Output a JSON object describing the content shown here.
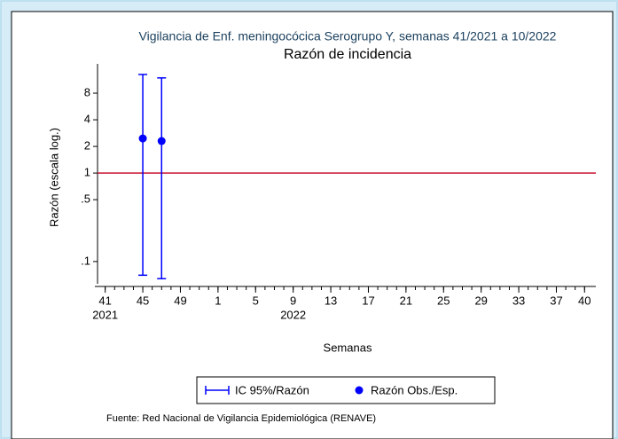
{
  "chart_data": {
    "type": "errorbar-scatter",
    "title": "Vigilancia de Enf. meningocócica Serogrupo Y, semanas 41/2021 a 10/2022",
    "subtitle": "Razón de incidencia",
    "y_label": "Razón (escala log.)",
    "x_label": "Semanas",
    "source": "Fuente: Red Nacional de Vigilancia Epidemiológica (RENAVE)",
    "y_log": true,
    "ylim": [
      0.06,
      16
    ],
    "yticks": [
      {
        "value": 0.1,
        "label": ".1"
      },
      {
        "value": 0.5,
        "label": ".5"
      },
      1,
      2,
      4,
      8
    ],
    "xlim": [
      -1.1,
      52.2
    ],
    "xticks": [
      {
        "value": 0,
        "label": "41"
      },
      {
        "value": 4,
        "label": "45"
      },
      {
        "value": 8,
        "label": "49"
      },
      {
        "value": 12,
        "label": "1"
      },
      {
        "value": 16,
        "label": "5"
      },
      {
        "value": 20,
        "label": "9"
      },
      {
        "value": 24,
        "label": "13"
      },
      {
        "value": 28,
        "label": "17"
      },
      {
        "value": 32,
        "label": "21"
      },
      {
        "value": 36,
        "label": "25"
      },
      {
        "value": 40,
        "label": "29"
      },
      {
        "value": 44,
        "label": "33"
      },
      {
        "value": 48,
        "label": "37"
      },
      {
        "value": 51,
        "label": "40"
      }
    ],
    "xminorticks": [
      0,
      1,
      2,
      3,
      4,
      5,
      6,
      7,
      8,
      9,
      10,
      11,
      12,
      13,
      14,
      15,
      16,
      17,
      18,
      19,
      20,
      21,
      22,
      23,
      24,
      25,
      26,
      27,
      28,
      29,
      30,
      31,
      32,
      33,
      34,
      35,
      36,
      37,
      38,
      39,
      40,
      41,
      42,
      43,
      44,
      45,
      46,
      47,
      48,
      49,
      50,
      51
    ],
    "year_labels": [
      {
        "value": 0,
        "label": "2021"
      },
      {
        "value": 20,
        "label": "2022"
      }
    ],
    "reference_line": {
      "value": 1,
      "color": "#c8102e"
    },
    "series": [
      {
        "name": "Razón Obs./Esp.",
        "ci_name": "IC 95%/Razón",
        "color": "#0000ff",
        "x": [
          4,
          6
        ],
        "values": [
          2.46,
          2.3
        ],
        "lower": [
          0.07,
          0.064
        ],
        "upper": [
          13,
          11.9
        ]
      }
    ]
  }
}
